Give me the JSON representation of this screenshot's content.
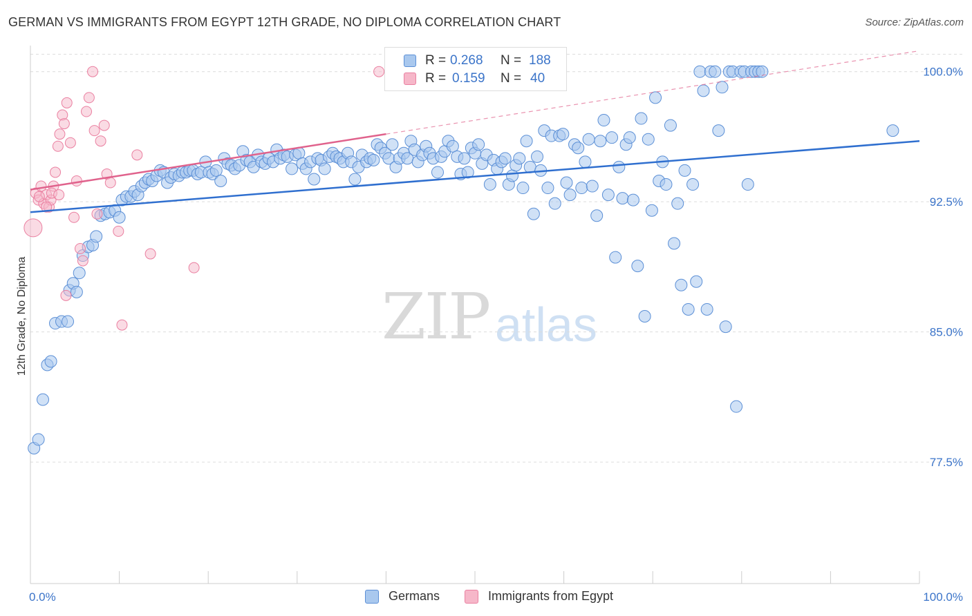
{
  "title": "GERMAN VS IMMIGRANTS FROM EGYPT 12TH GRADE, NO DIPLOMA CORRELATION CHART",
  "source": "Source: ZipAtlas.com",
  "watermark": {
    "zip": "ZIP",
    "atlas": "atlas"
  },
  "legend_top": [
    {
      "r_label": "R =",
      "r_value": "0.268",
      "n_label": "N =",
      "n_value": "188",
      "color": "#a9c8ee"
    },
    {
      "r_label": "R =",
      "r_value": "0.159",
      "n_label": "N =",
      "n_value": "40",
      "color": "#f6b7c9"
    }
  ],
  "legend_bottom": [
    {
      "label": "Germans",
      "color": "#a9c8ee"
    },
    {
      "label": "Immigrants from Egypt",
      "color": "#f6b7c9"
    }
  ],
  "colors": {
    "blue_fill": "#a9c8ee",
    "blue_stroke": "#5b8fd6",
    "blue_line": "#2f6fcf",
    "pink_fill": "#f6b7c9",
    "pink_stroke": "#ea7fa0",
    "pink_line": "#e0628c",
    "axis_label": "#3b74c9",
    "grid": "#dcdcdc"
  },
  "chart_data": {
    "type": "scatter",
    "title": "GERMAN VS IMMIGRANTS FROM EGYPT 12TH GRADE, NO DIPLOMA CORRELATION CHART",
    "xlabel": "",
    "ylabel": "12th Grade, No Diploma",
    "xlim": [
      0,
      100
    ],
    "ylim": [
      70.5,
      101.5
    ],
    "x_tick_labels": [
      "0.0%",
      "100.0%"
    ],
    "y_ticks": [
      77.5,
      85.0,
      92.5,
      100.0
    ],
    "y_tick_labels": [
      "77.5%",
      "85.0%",
      "92.5%",
      "100.0%"
    ],
    "grid": true,
    "legend_position": "top-center",
    "series": [
      {
        "name": "Germans",
        "trend": {
          "x": [
            0,
            100
          ],
          "y": [
            91.9,
            96.0
          ]
        },
        "points": [
          [
            0.4,
            78.3
          ],
          [
            0.9,
            78.8
          ],
          [
            1.4,
            81.1
          ],
          [
            1.9,
            83.1
          ],
          [
            2.3,
            83.3
          ],
          [
            2.8,
            85.5
          ],
          [
            3.5,
            85.6
          ],
          [
            4.2,
            85.6
          ],
          [
            4.4,
            87.4
          ],
          [
            4.8,
            87.8
          ],
          [
            5.2,
            87.3
          ],
          [
            5.5,
            88.4
          ],
          [
            5.9,
            89.4
          ],
          [
            6.5,
            89.9
          ],
          [
            7.0,
            90.0
          ],
          [
            7.4,
            90.5
          ],
          [
            7.9,
            91.7
          ],
          [
            8.4,
            91.8
          ],
          [
            8.9,
            91.9
          ],
          [
            9.5,
            92.0
          ],
          [
            10.0,
            91.6
          ],
          [
            10.3,
            92.6
          ],
          [
            10.8,
            92.8
          ],
          [
            11.3,
            92.8
          ],
          [
            11.7,
            93.1
          ],
          [
            12.1,
            92.9
          ],
          [
            12.5,
            93.4
          ],
          [
            12.9,
            93.6
          ],
          [
            13.3,
            93.8
          ],
          [
            13.7,
            93.7
          ],
          [
            14.2,
            94.0
          ],
          [
            14.6,
            94.3
          ],
          [
            15.0,
            94.2
          ],
          [
            15.4,
            93.6
          ],
          [
            15.8,
            93.9
          ],
          [
            16.2,
            94.1
          ],
          [
            16.7,
            94.0
          ],
          [
            17.1,
            94.2
          ],
          [
            17.5,
            94.2
          ],
          [
            17.9,
            94.3
          ],
          [
            18.3,
            94.3
          ],
          [
            18.8,
            94.1
          ],
          [
            19.2,
            94.2
          ],
          [
            19.7,
            94.8
          ],
          [
            20.1,
            94.2
          ],
          [
            20.5,
            94.1
          ],
          [
            20.9,
            94.3
          ],
          [
            21.4,
            93.7
          ],
          [
            21.8,
            95.0
          ],
          [
            22.2,
            94.7
          ],
          [
            22.6,
            94.6
          ],
          [
            23.0,
            94.4
          ],
          [
            23.5,
            94.6
          ],
          [
            23.9,
            95.4
          ],
          [
            24.3,
            94.9
          ],
          [
            24.7,
            94.8
          ],
          [
            25.1,
            94.5
          ],
          [
            25.6,
            95.2
          ],
          [
            26.0,
            94.8
          ],
          [
            26.4,
            94.7
          ],
          [
            26.8,
            95.0
          ],
          [
            27.3,
            94.8
          ],
          [
            27.7,
            95.5
          ],
          [
            28.1,
            95.0
          ],
          [
            28.5,
            95.2
          ],
          [
            28.9,
            95.1
          ],
          [
            29.4,
            94.4
          ],
          [
            29.8,
            95.2
          ],
          [
            30.2,
            95.3
          ],
          [
            30.6,
            94.7
          ],
          [
            31.0,
            94.4
          ],
          [
            31.5,
            94.8
          ],
          [
            31.9,
            93.8
          ],
          [
            32.3,
            95.0
          ],
          [
            32.7,
            94.9
          ],
          [
            33.1,
            94.4
          ],
          [
            33.6,
            95.1
          ],
          [
            34.0,
            95.3
          ],
          [
            34.4,
            95.1
          ],
          [
            34.8,
            95.0
          ],
          [
            35.2,
            94.8
          ],
          [
            35.7,
            95.3
          ],
          [
            36.1,
            94.8
          ],
          [
            36.5,
            93.8
          ],
          [
            36.9,
            94.5
          ],
          [
            37.3,
            95.2
          ],
          [
            37.8,
            94.8
          ],
          [
            38.2,
            95.0
          ],
          [
            38.6,
            94.9
          ],
          [
            39.0,
            95.8
          ],
          [
            39.4,
            95.6
          ],
          [
            39.9,
            95.3
          ],
          [
            40.3,
            95.0
          ],
          [
            40.7,
            95.8
          ],
          [
            41.1,
            94.5
          ],
          [
            41.5,
            95.0
          ],
          [
            42.0,
            95.3
          ],
          [
            42.4,
            95.0
          ],
          [
            42.8,
            96.0
          ],
          [
            43.2,
            95.5
          ],
          [
            43.6,
            94.8
          ],
          [
            44.1,
            95.2
          ],
          [
            44.5,
            95.7
          ],
          [
            44.9,
            95.3
          ],
          [
            45.3,
            95.0
          ],
          [
            45.8,
            94.2
          ],
          [
            46.2,
            95.1
          ],
          [
            46.6,
            95.4
          ],
          [
            47.0,
            96.0
          ],
          [
            47.5,
            95.7
          ],
          [
            48.0,
            95.1
          ],
          [
            48.4,
            94.1
          ],
          [
            48.8,
            95.0
          ],
          [
            49.2,
            94.2
          ],
          [
            49.6,
            95.6
          ],
          [
            50.0,
            95.3
          ],
          [
            50.4,
            95.8
          ],
          [
            50.8,
            94.7
          ],
          [
            51.3,
            95.2
          ],
          [
            51.7,
            93.5
          ],
          [
            52.1,
            94.9
          ],
          [
            52.5,
            94.4
          ],
          [
            53.0,
            94.8
          ],
          [
            53.4,
            95.0
          ],
          [
            53.8,
            93.5
          ],
          [
            54.2,
            94.0
          ],
          [
            54.6,
            94.6
          ],
          [
            55.0,
            95.0
          ],
          [
            55.4,
            93.3
          ],
          [
            55.8,
            96.0
          ],
          [
            56.2,
            94.5
          ],
          [
            56.6,
            91.8
          ],
          [
            57.0,
            95.1
          ],
          [
            57.4,
            94.3
          ],
          [
            57.8,
            96.6
          ],
          [
            58.2,
            93.3
          ],
          [
            58.6,
            96.3
          ],
          [
            59.0,
            92.4
          ],
          [
            59.5,
            96.3
          ],
          [
            59.9,
            96.4
          ],
          [
            60.3,
            93.6
          ],
          [
            60.7,
            92.9
          ],
          [
            61.2,
            95.8
          ],
          [
            61.6,
            95.6
          ],
          [
            62.0,
            93.3
          ],
          [
            62.4,
            94.8
          ],
          [
            62.8,
            96.1
          ],
          [
            63.2,
            93.4
          ],
          [
            63.7,
            91.7
          ],
          [
            64.1,
            96.0
          ],
          [
            64.5,
            97.2
          ],
          [
            65.0,
            92.9
          ],
          [
            65.4,
            96.2
          ],
          [
            65.8,
            89.3
          ],
          [
            66.2,
            94.5
          ],
          [
            66.6,
            92.7
          ],
          [
            67.0,
            95.8
          ],
          [
            67.4,
            96.2
          ],
          [
            67.8,
            92.6
          ],
          [
            68.3,
            88.8
          ],
          [
            68.7,
            97.3
          ],
          [
            69.1,
            85.9
          ],
          [
            69.5,
            96.1
          ],
          [
            69.9,
            92.0
          ],
          [
            70.3,
            98.5
          ],
          [
            70.7,
            93.7
          ],
          [
            71.1,
            94.8
          ],
          [
            71.5,
            93.5
          ],
          [
            72.0,
            96.9
          ],
          [
            72.4,
            90.1
          ],
          [
            72.8,
            92.4
          ],
          [
            73.2,
            87.7
          ],
          [
            73.6,
            94.3
          ],
          [
            74.0,
            86.3
          ],
          [
            74.5,
            93.5
          ],
          [
            74.9,
            87.9
          ],
          [
            75.3,
            100.0
          ],
          [
            75.7,
            98.9
          ],
          [
            76.1,
            86.3
          ],
          [
            76.5,
            100.0
          ],
          [
            77.0,
            100.0
          ],
          [
            77.4,
            96.6
          ],
          [
            77.8,
            99.1
          ],
          [
            78.2,
            85.3
          ],
          [
            78.6,
            100.0
          ],
          [
            79.0,
            100.0
          ],
          [
            79.4,
            80.7
          ],
          [
            79.9,
            100.0
          ],
          [
            80.3,
            100.0
          ],
          [
            80.7,
            93.5
          ],
          [
            81.1,
            100.0
          ],
          [
            81.5,
            100.0
          ],
          [
            81.9,
            100.0
          ],
          [
            82.3,
            100.0
          ],
          [
            97.0,
            96.6
          ]
        ]
      },
      {
        "name": "Immigrants from Egypt",
        "trend": {
          "x": [
            0,
            40
          ],
          "y": [
            93.2,
            96.4
          ]
        },
        "points": [
          [
            0.3,
            91.0
          ],
          [
            0.6,
            93.0
          ],
          [
            0.9,
            92.6
          ],
          [
            1.2,
            93.4
          ],
          [
            1.5,
            92.4
          ],
          [
            1.8,
            92.9
          ],
          [
            2.1,
            92.2
          ],
          [
            2.3,
            92.6
          ],
          [
            2.6,
            93.4
          ],
          [
            2.8,
            94.2
          ],
          [
            3.1,
            95.7
          ],
          [
            3.3,
            96.4
          ],
          [
            3.6,
            97.5
          ],
          [
            3.8,
            97.0
          ],
          [
            4.1,
            98.2
          ],
          [
            4.5,
            95.9
          ],
          [
            4.9,
            91.6
          ],
          [
            5.2,
            93.7
          ],
          [
            5.6,
            89.8
          ],
          [
            5.9,
            89.1
          ],
          [
            6.3,
            97.7
          ],
          [
            6.6,
            98.5
          ],
          [
            7.0,
            100.0
          ],
          [
            7.2,
            96.6
          ],
          [
            7.5,
            91.8
          ],
          [
            7.9,
            96.0
          ],
          [
            8.3,
            96.9
          ],
          [
            8.6,
            94.1
          ],
          [
            9.0,
            93.6
          ],
          [
            9.9,
            90.8
          ],
          [
            10.3,
            85.4
          ],
          [
            12.0,
            95.2
          ],
          [
            13.5,
            89.5
          ],
          [
            18.4,
            88.7
          ],
          [
            39.2,
            100.0
          ],
          [
            1.8,
            92.2
          ],
          [
            2.4,
            93.0
          ],
          [
            4.0,
            87.1
          ],
          [
            3.2,
            92.9
          ],
          [
            1.0,
            92.8
          ]
        ]
      }
    ]
  }
}
